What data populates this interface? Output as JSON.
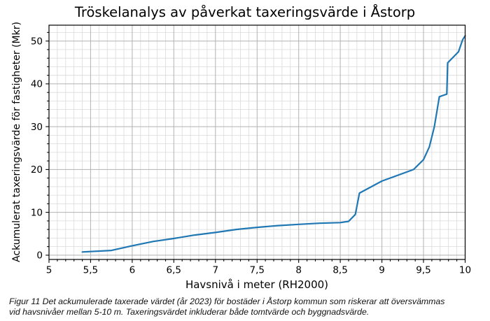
{
  "figure": {
    "caption": "Figur 11 Det ackumulerade taxerade värdet (år 2023) för bostäder i Åstorp kommun som riskerar att översvämmas\nvid havsnivåer mellan 5-10 m. Taxeringsvärdet inkluderar både tomtvärde och byggnadsvärde."
  },
  "chart_data": {
    "type": "line",
    "title": "Tröskelanalys av påverkat taxeringsvärde i Åstorp",
    "xlabel": "Havsnivå i meter (RH2000)",
    "ylabel": "Ackumulerat taxeringsvärde för fastigheter (Mkr)",
    "xlim": [
      5,
      10
    ],
    "ylim": [
      -1,
      53.7
    ],
    "x_ticks": [
      5,
      5.5,
      6,
      6.5,
      7,
      7.5,
      8,
      8.5,
      9,
      9.5,
      10
    ],
    "x_tick_labels": [
      "5",
      "5,5",
      "6",
      "6,5",
      "7",
      "7,5",
      "8",
      "8,5",
      "9",
      "9,5",
      "10"
    ],
    "y_ticks": [
      0,
      10,
      20,
      30,
      40,
      50
    ],
    "y_tick_labels": [
      "0",
      "10",
      "20",
      "30",
      "40",
      "50"
    ],
    "x_minor_step": 0.1,
    "y_minor_step": 2,
    "grid": "major+minor",
    "legend": "none",
    "series": [
      {
        "color": "#1f77b4",
        "points": [
          [
            5.4,
            0.75
          ],
          [
            5.5,
            0.85
          ],
          [
            5.75,
            1.1
          ],
          [
            6.0,
            2.2
          ],
          [
            6.25,
            3.2
          ],
          [
            6.5,
            3.9
          ],
          [
            6.75,
            4.7
          ],
          [
            7.0,
            5.3
          ],
          [
            7.25,
            6.0
          ],
          [
            7.5,
            6.5
          ],
          [
            7.75,
            6.9
          ],
          [
            8.0,
            7.2
          ],
          [
            8.25,
            7.45
          ],
          [
            8.5,
            7.6
          ],
          [
            8.6,
            7.9
          ],
          [
            8.68,
            9.5
          ],
          [
            8.73,
            14.5
          ],
          [
            9.0,
            17.3
          ],
          [
            9.38,
            20.0
          ],
          [
            9.5,
            22.3
          ],
          [
            9.57,
            25.3
          ],
          [
            9.63,
            30.0
          ],
          [
            9.66,
            33.5
          ],
          [
            9.69,
            37.0
          ],
          [
            9.78,
            37.6
          ],
          [
            9.79,
            44.9
          ],
          [
            9.92,
            47.5
          ],
          [
            9.97,
            50.3
          ],
          [
            10.0,
            51.2
          ]
        ]
      }
    ]
  },
  "colors": {
    "line": "#1f77b4",
    "grid_major": "#b2b2b2",
    "grid_minor": "#dadada",
    "spine": "#000000",
    "text": "#000000",
    "background": "#ffffff"
  }
}
